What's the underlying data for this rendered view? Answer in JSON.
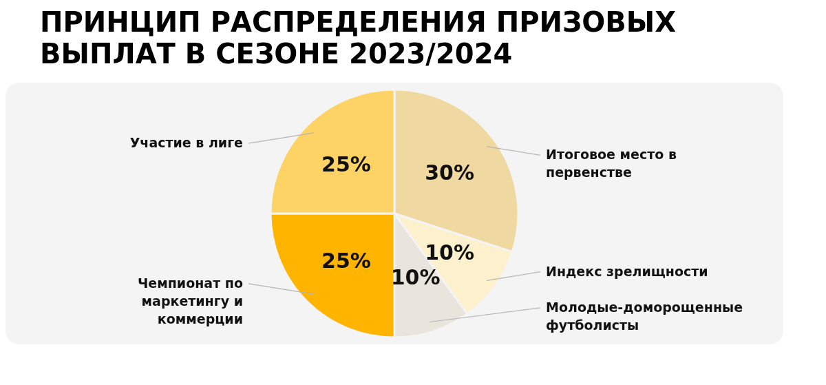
{
  "chart_data": {
    "type": "pie",
    "title": "ПРИНЦИП РАСПРЕДЕЛЕНИЯ ПРИЗОВЫХ ВЫПЛАТ В СЕЗОНЕ 2023/2024",
    "categories": [
      "Итоговое место в первенстве",
      "Индекс зрелищности",
      "Молодые-доморощенные футболисты",
      "Чемпионат по маркетингу и коммерции",
      "Участие в лиге"
    ],
    "values": [
      30,
      10,
      10,
      25,
      25
    ],
    "colors": [
      "#f0d9a0",
      "#fdf0cc",
      "#e9e5dd",
      "#ffb400",
      "#fdd366"
    ],
    "value_labels": [
      "30%",
      "10%",
      "10%",
      "25%",
      "25%"
    ]
  }
}
